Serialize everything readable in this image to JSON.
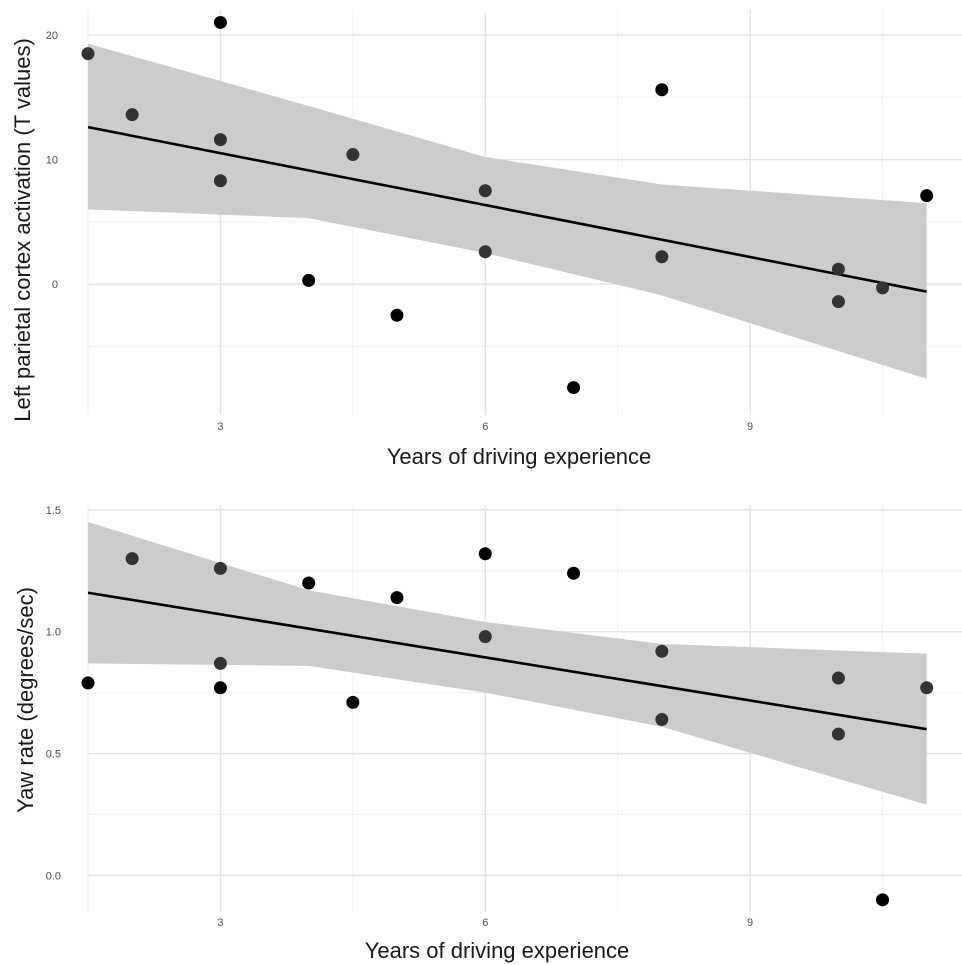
{
  "chart_data": [
    {
      "type": "scatter",
      "xlabel": "Years of driving experience",
      "ylabel": "Left parietal cortex activation (T values)",
      "xlim": [
        1.5,
        11.4
      ],
      "ylim": [
        -10.5,
        22
      ],
      "xticks": [
        3,
        6,
        9
      ],
      "xtick_labels": [
        "3",
        "6",
        "9"
      ],
      "yticks": [
        0,
        10,
        20
      ],
      "ytick_labels": [
        "0",
        "10",
        "20"
      ],
      "grid": true,
      "series": [
        {
          "x": [
            1.5,
            2.0,
            3.0,
            3.0,
            3.0,
            4.0,
            4.5,
            5.0,
            6.0,
            6.0,
            7.0,
            8.0,
            8.0,
            10.0,
            10.0,
            10.5,
            11.0
          ],
          "y": [
            18.5,
            13.6,
            21.0,
            11.6,
            8.3,
            0.3,
            10.4,
            -2.5,
            7.5,
            2.6,
            -8.3,
            15.6,
            2.2,
            1.2,
            -1.4,
            -0.3,
            7.1
          ]
        }
      ],
      "fit_line": {
        "x": [
          1.5,
          11.0
        ],
        "y": [
          12.6,
          -0.6
        ]
      },
      "confidence_band": {
        "x": [
          1.5,
          4.0,
          6.0,
          8.0,
          11.0
        ],
        "upper": [
          19.3,
          14.3,
          10.2,
          8.0,
          6.5
        ],
        "lower": [
          6.0,
          5.3,
          2.5,
          -0.9,
          -7.6
        ]
      }
    },
    {
      "type": "scatter",
      "xlabel": "Years of driving experience",
      "ylabel": "Yaw rate (degrees/sec)",
      "xlim": [
        1.5,
        11.4
      ],
      "ylim": [
        -0.15,
        1.52
      ],
      "xticks": [
        3,
        6,
        9
      ],
      "xtick_labels": [
        "3",
        "6",
        "9"
      ],
      "yticks": [
        0.0,
        0.5,
        1.0,
        1.5
      ],
      "ytick_labels": [
        "0.0",
        "0.5",
        "1.0",
        "1.5"
      ],
      "grid": true,
      "series": [
        {
          "x": [
            1.5,
            2.0,
            3.0,
            3.0,
            3.0,
            4.0,
            4.5,
            5.0,
            6.0,
            6.0,
            7.0,
            8.0,
            8.0,
            10.0,
            10.0,
            10.5,
            11.0
          ],
          "y": [
            0.79,
            1.3,
            1.26,
            0.87,
            0.77,
            1.2,
            0.71,
            1.14,
            1.32,
            0.98,
            1.24,
            0.92,
            0.64,
            0.81,
            0.58,
            -0.1,
            0.77
          ]
        }
      ],
      "fit_line": {
        "x": [
          1.5,
          11.0
        ],
        "y": [
          1.16,
          0.6
        ]
      },
      "confidence_band": {
        "x": [
          1.5,
          4.0,
          6.0,
          8.0,
          11.0
        ],
        "upper": [
          1.45,
          1.17,
          1.04,
          0.95,
          0.91
        ],
        "lower": [
          0.87,
          0.86,
          0.75,
          0.61,
          0.29
        ]
      }
    }
  ]
}
